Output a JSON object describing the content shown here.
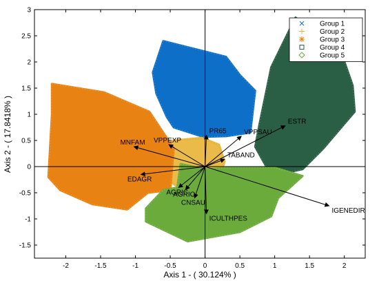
{
  "chart_data": {
    "type": "scatter",
    "title": "",
    "xlabel": "Axis 1 - ( 30.124% )",
    "ylabel": "Axis 2 - ( 17.8418% )",
    "xlim": [
      -2.45,
      2.3
    ],
    "ylim": [
      -1.75,
      3.0
    ],
    "xticks": [
      -2,
      -1.5,
      -1,
      -0.5,
      0,
      0.5,
      1,
      1.5,
      2
    ],
    "xtick_labels": [
      "-2",
      "-1.5",
      "-1",
      "-0.5",
      "0",
      "0.5",
      "1",
      "1.5",
      "2"
    ],
    "yticks": [
      -1.5,
      -1,
      -0.5,
      0,
      0.5,
      1,
      1.5,
      2,
      2.5,
      3
    ],
    "ytick_labels": [
      "-1.5",
      "-1",
      "-0.5",
      "0",
      "0.5",
      "1",
      "1.5",
      "2",
      "2.5",
      "3"
    ],
    "grid": false,
    "legend_position": "top-right",
    "series": [
      {
        "name": "Group 1",
        "marker": "x",
        "color": "#0d6fc7",
        "hull": [
          [
            -0.6,
            2.4
          ],
          [
            0.3,
            2.1
          ],
          [
            0.5,
            1.75
          ],
          [
            0.72,
            1.45
          ],
          [
            0.65,
            0.65
          ],
          [
            0.3,
            0.58
          ],
          [
            -0.03,
            0.57
          ],
          [
            -0.45,
            0.75
          ],
          [
            -0.55,
            0.95
          ],
          [
            -0.7,
            1.4
          ],
          [
            -0.75,
            1.8
          ]
        ]
      },
      {
        "name": "Group 2",
        "marker": "+",
        "color": "#e8b434",
        "hull": [
          [
            -0.7,
            0.4
          ],
          [
            -0.45,
            0.5
          ],
          [
            -0.05,
            0.55
          ],
          [
            0.2,
            0.42
          ],
          [
            0.28,
            0.1
          ],
          [
            0.2,
            -0.3
          ],
          [
            -0.05,
            -0.45
          ],
          [
            -0.4,
            -0.38
          ],
          [
            -0.65,
            -0.15
          ]
        ]
      },
      {
        "name": "Group 3",
        "marker": "*",
        "color": "#e88212",
        "hull": [
          [
            -2.2,
            1.58
          ],
          [
            -1.45,
            1.42
          ],
          [
            -0.8,
            1.05
          ],
          [
            -0.45,
            0.35
          ],
          [
            -0.5,
            -0.45
          ],
          [
            -0.82,
            -0.5
          ],
          [
            -1.12,
            -0.82
          ],
          [
            -1.62,
            -0.72
          ],
          [
            -2.08,
            -0.45
          ],
          [
            -2.25,
            -0.2
          ],
          [
            -2.2,
            1.0
          ]
        ]
      },
      {
        "name": "Group 4",
        "marker": "square",
        "color": "#2a5e45",
        "hull": [
          [
            1.3,
            2.85
          ],
          [
            1.95,
            2.2
          ],
          [
            2.12,
            1.55
          ],
          [
            2.15,
            1.05
          ],
          [
            1.7,
            0.35
          ],
          [
            1.4,
            -0.05
          ],
          [
            1.05,
            -0.15
          ],
          [
            0.9,
            -0.05
          ],
          [
            0.72,
            0.38
          ],
          [
            0.78,
            0.8
          ],
          [
            0.95,
            1.9
          ]
        ]
      },
      {
        "name": "Group 5",
        "marker": "diamond",
        "color": "#6bab3c",
        "hull": [
          [
            -0.35,
            0.05
          ],
          [
            0.0,
            -0.05
          ],
          [
            0.4,
            -0.02
          ],
          [
            1.0,
            -0.02
          ],
          [
            1.4,
            -0.18
          ],
          [
            1.05,
            -0.6
          ],
          [
            0.95,
            -0.95
          ],
          [
            0.5,
            -1.25
          ],
          [
            -0.25,
            -1.43
          ],
          [
            -0.85,
            -1.05
          ],
          [
            -0.85,
            -0.8
          ],
          [
            -0.6,
            -0.45
          ],
          [
            -0.4,
            -0.4
          ]
        ]
      }
    ],
    "vectors": [
      {
        "label": "ESTR",
        "x": 1.15,
        "y": 0.78
      },
      {
        "label": "PR65",
        "x": 0.02,
        "y": 0.6
      },
      {
        "label": "VPPSAU",
        "x": 0.52,
        "y": 0.58
      },
      {
        "label": "VPPEXP",
        "x": -0.52,
        "y": 0.42
      },
      {
        "label": "MNFAM",
        "x": -1.02,
        "y": 0.38
      },
      {
        "label": "TABAND",
        "x": 0.28,
        "y": 0.14
      },
      {
        "label": "EDAGR",
        "x": -0.92,
        "y": -0.15
      },
      {
        "label": "AGRIC",
        "x": -0.38,
        "y": -0.4
      },
      {
        "label": "AGRIO",
        "x": -0.28,
        "y": -0.44
      },
      {
        "label": "CNSAU",
        "x": -0.15,
        "y": -0.6
      },
      {
        "label": "ICULTHPES",
        "x": 0.02,
        "y": -0.9
      },
      {
        "label": "IGENEDIR",
        "x": 1.78,
        "y": -0.75
      }
    ]
  }
}
